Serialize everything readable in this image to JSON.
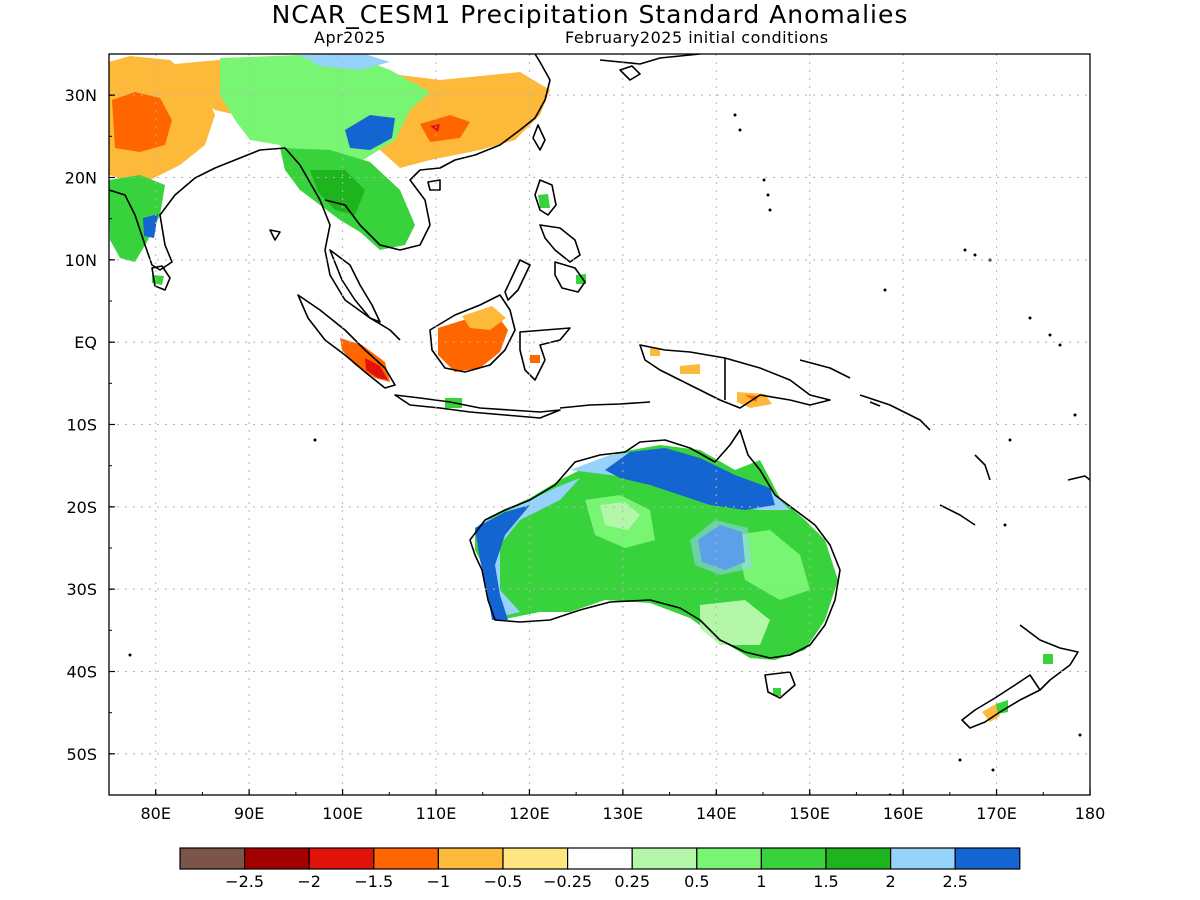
{
  "title": "NCAR_CESM1 Precipitation Standard Anomalies",
  "valid_month": "Apr2025",
  "init_conditions": "February2025 initial conditions",
  "map": {
    "lon_range": [
      75,
      180
    ],
    "lat_range": [
      -55,
      35
    ],
    "lon_ticks": [
      "80E",
      "90E",
      "100E",
      "110E",
      "120E",
      "130E",
      "140E",
      "150E",
      "160E",
      "170E",
      "180"
    ],
    "lat_ticks": [
      "30N",
      "20N",
      "10N",
      "EQ",
      "10S",
      "20S",
      "30S",
      "40S",
      "50S"
    ],
    "gridlines": "dotted"
  },
  "legend": {
    "colors": [
      "#7a5548",
      "#a50000",
      "#e0120a",
      "#ff6600",
      "#fdb939",
      "#ffe680",
      "#ffffff",
      "#b4f7a8",
      "#78f573",
      "#37d23c",
      "#1eb41e",
      "#96d2fa",
      "#1464d2"
    ],
    "labels": [
      "-2.5",
      "-2",
      "-1.5",
      "-1",
      "-0.5",
      "-0.25",
      "0.25",
      "0.5",
      "1",
      "1.5",
      "2",
      "2.5"
    ]
  },
  "colors": {
    "land_outline": "#000000",
    "grid": "#b4b4b4"
  }
}
